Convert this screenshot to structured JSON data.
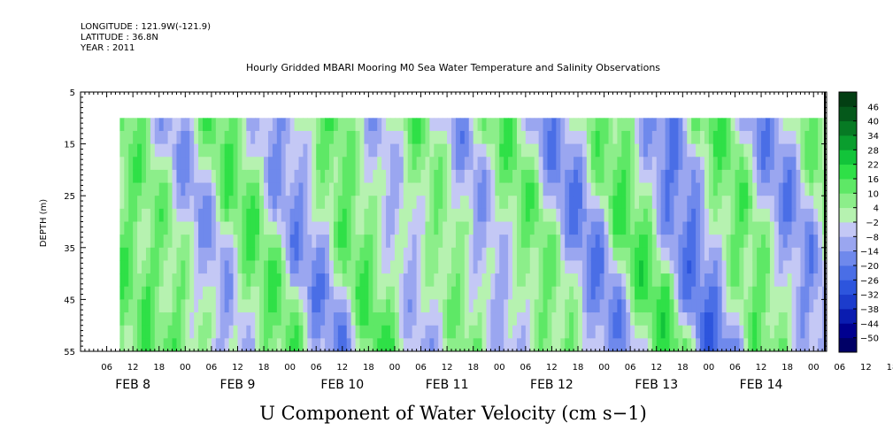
{
  "header": {
    "longitude": "LONGITUDE : 121.9W(-121.9)",
    "latitude": "LATITUDE : 36.8N",
    "year": "YEAR : 2011"
  },
  "chart_data": {
    "type": "heatmap",
    "title": "Hourly Gridded MBARI Mooring M0 Sea Water Temperature and Salinity Observations",
    "xlabel": "U Component of Water Velocity (cm s−1)",
    "ylabel": "DEPTH (m)",
    "ylim": [
      5,
      55
    ],
    "y_inverted": true,
    "y_ticks": [
      5,
      15,
      25,
      35,
      45,
      55
    ],
    "data_depth_range": [
      10,
      55
    ],
    "x_range_hours": [
      "2011-02-08 00:00",
      "2011-02-15 03:00"
    ],
    "data_start": "2011-02-08 09:00",
    "x_hour_ticks": [
      "06",
      "12",
      "18",
      "00",
      "06",
      "12",
      "18",
      "00",
      "06",
      "12",
      "18",
      "00",
      "06",
      "12",
      "18",
      "00",
      "06",
      "12",
      "18",
      "00",
      "06",
      "12",
      "18",
      "00",
      "06",
      "12",
      "18",
      "00",
      "06",
      "12",
      "18",
      "00"
    ],
    "day_labels": [
      "FEB  8",
      "FEB  9",
      "FEB 10",
      "FEB 11",
      "FEB 12",
      "FEB 13",
      "FEB 14"
    ],
    "colorbar": {
      "levels": [
        -50,
        -44,
        -38,
        -32,
        -26,
        -20,
        -14,
        -8,
        -2,
        4,
        10,
        16,
        22,
        28,
        34,
        40,
        46
      ],
      "labels": [
        "46",
        "40",
        "34",
        "28",
        "22",
        "16",
        "10",
        "4",
        "−2",
        "−8",
        "−14",
        "−20",
        "−26",
        "−32",
        "−38",
        "−44",
        "−50"
      ],
      "colors": [
        "#000066",
        "#00008f",
        "#0a1cb0",
        "#1c3ccc",
        "#2d55dd",
        "#4a6ee6",
        "#6f89ec",
        "#9aa6f0",
        "#c4c8f5",
        "#b6f2b0",
        "#8cee8a",
        "#5ee866",
        "#2fe047",
        "#12c43a",
        "#0a9e2e",
        "#077a24",
        "#05591b",
        "#033f13"
      ],
      "range": [
        -50,
        52
      ]
    },
    "features": [
      {
        "t": 12,
        "v": 10
      },
      {
        "t": 20,
        "v": -12
      },
      {
        "t": 32,
        "v": 12
      },
      {
        "t": 44,
        "v": -14
      },
      {
        "t": 56,
        "v": 14
      },
      {
        "t": 66,
        "v": -10
      },
      {
        "t": 76,
        "v": 12
      },
      {
        "t": 84,
        "v": -12
      },
      {
        "t": 96,
        "v": 10
      },
      {
        "t": 108,
        "v": -16
      },
      {
        "t": 120,
        "v": 14
      },
      {
        "t": 132,
        "v": -20
      },
      {
        "t": 144,
        "v": 12
      },
      {
        "t": 156,
        "v": -14
      },
      {
        "t": 168,
        "v": 8
      }
    ]
  }
}
